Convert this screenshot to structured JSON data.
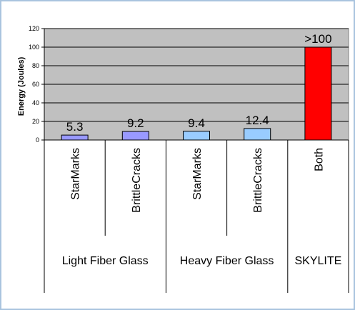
{
  "chart_data": {
    "type": "bar",
    "title": "",
    "xlabel": "",
    "ylabel": "Energy (Joules)",
    "ylim": [
      0,
      120
    ],
    "yticks": [
      0,
      20,
      40,
      60,
      80,
      100,
      120
    ],
    "grid": true,
    "legend": "none",
    "categories": [
      "StarMarks",
      "BrittleCracks",
      "StarMarks",
      "BrittleCracks",
      "Both"
    ],
    "groups": [
      {
        "label": "Light Fiber Glass",
        "span": 2
      },
      {
        "label": "Heavy Fiber Glass",
        "span": 2
      },
      {
        "label": "SKYLITE",
        "span": 1
      }
    ],
    "values": [
      5.3,
      9.2,
      9.4,
      12.4,
      100
    ],
    "data_labels": [
      "5.3",
      "9.2",
      "9.4",
      "12.4",
      ">100"
    ],
    "bar_colors": [
      "#9999ff",
      "#9999ff",
      "#99ccff",
      "#99ccff",
      "#ff0000"
    ],
    "plot_background": "#c0c0c0"
  }
}
